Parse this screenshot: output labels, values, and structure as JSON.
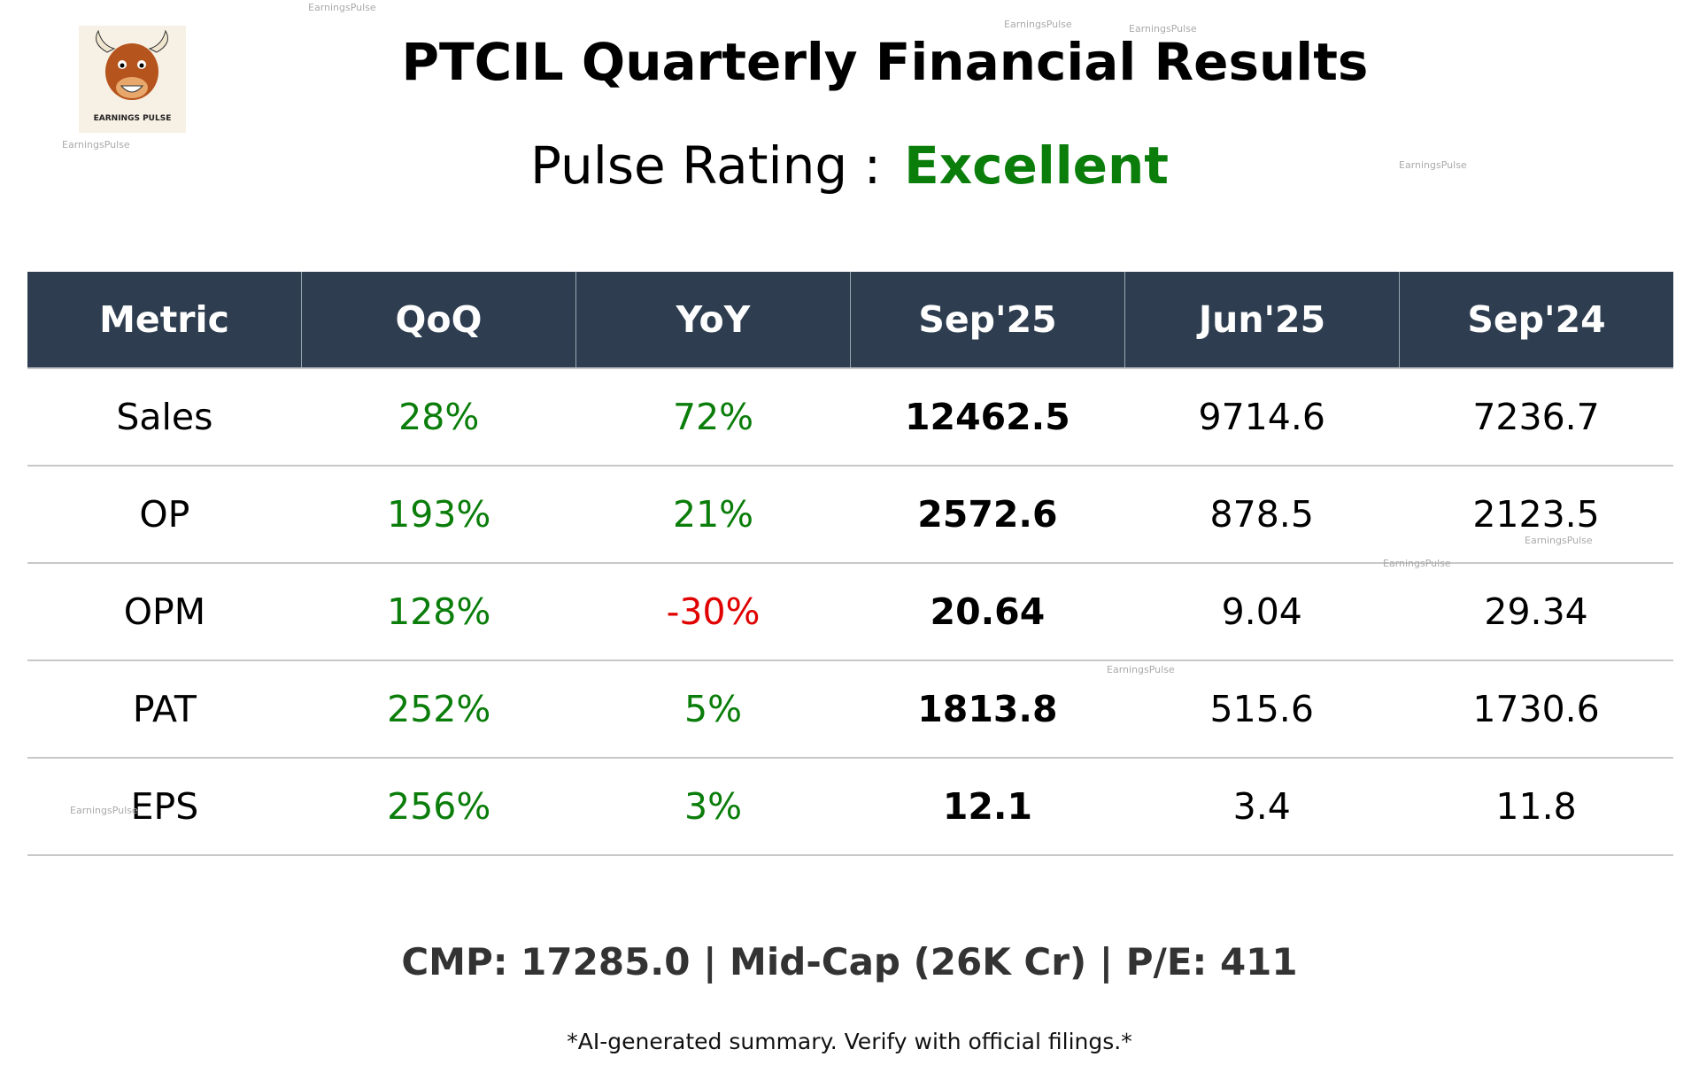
{
  "header": {
    "title": "PTCIL Quarterly Financial Results",
    "rating_label": "Pulse Rating :",
    "rating_value": "Excellent",
    "logo_text": "EARNINGS PULSE"
  },
  "table": {
    "columns": [
      "Metric",
      "QoQ",
      "YoY",
      "Sep'25",
      "Jun'25",
      "Sep'24"
    ],
    "rows": [
      [
        "Sales",
        "28%",
        "72%",
        "12462.5",
        "9714.6",
        "7236.7"
      ],
      [
        "OP",
        "193%",
        "21%",
        "2572.6",
        "878.5",
        "2123.5"
      ],
      [
        "OPM",
        "128%",
        "-30%",
        "20.64",
        "9.04",
        "29.34"
      ],
      [
        "PAT",
        "252%",
        "5%",
        "1813.8",
        "515.6",
        "1730.6"
      ],
      [
        "EPS",
        "256%",
        "3%",
        "12.1",
        "3.4",
        "11.8"
      ]
    ]
  },
  "footer": {
    "summary": "CMP: 17285.0 | Mid-Cap (26K Cr) | P/E: 411",
    "disclaimer": "*AI-generated summary. Verify with official filings.*"
  },
  "watermarks": [
    "EarningsPulse",
    "EarningsPulse",
    "EarningsPulse",
    "EarningsPulse",
    "EarningsPulse",
    "EarningsPulse",
    "EarningsPulse",
    "EarningsPulse",
    "EarningsPulse"
  ]
}
